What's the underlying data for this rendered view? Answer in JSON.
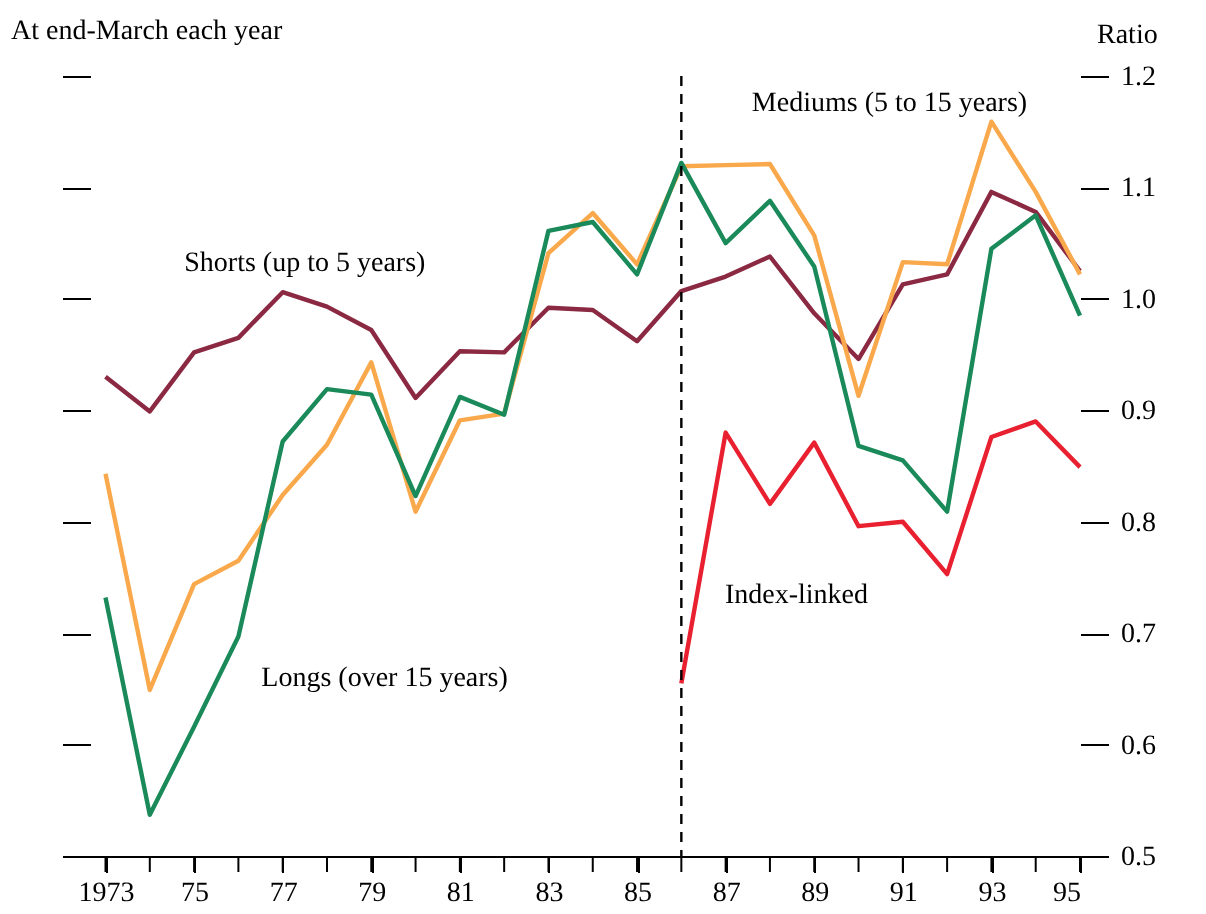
{
  "chart_data": {
    "type": "line",
    "ylabel": "Ratio",
    "annotations": [
      "At end-March each year"
    ],
    "x": [
      1973,
      1974,
      1975,
      1976,
      1977,
      1978,
      1979,
      1980,
      1981,
      1982,
      1983,
      1984,
      1985,
      1986,
      1987,
      1988,
      1989,
      1990,
      1991,
      1992,
      1993,
      1994,
      1995
    ],
    "series": [
      {
        "name": "Shorts (up to 5 years)",
        "color": "#8b2942",
        "values": [
          0.93,
          0.899,
          0.952,
          0.965,
          1.006,
          0.993,
          0.972,
          0.911,
          0.953,
          0.952,
          0.992,
          0.99,
          0.962,
          1.007,
          1.02,
          1.038,
          0.987,
          0.946,
          1.013,
          1.022,
          1.096,
          1.078,
          1.025
        ]
      },
      {
        "name": "Mediums (5 to 15 years)",
        "color": "#f9a94b",
        "values": [
          0.843,
          0.649,
          0.744,
          0.765,
          0.824,
          0.869,
          0.943,
          0.809,
          0.891,
          0.897,
          1.041,
          1.077,
          1.031,
          1.119,
          1.12,
          1.121,
          1.057,
          0.913,
          1.033,
          1.031,
          1.159,
          1.096,
          1.022
        ]
      },
      {
        "name": "Longs (over 15 years)",
        "color": "#1a8a5a",
        "values": [
          0.732,
          0.537,
          0.616,
          0.697,
          0.872,
          0.919,
          0.914,
          0.823,
          0.912,
          0.896,
          1.061,
          1.069,
          1.022,
          1.122,
          1.05,
          1.088,
          1.029,
          0.868,
          0.855,
          0.809,
          1.045,
          1.075,
          0.985
        ]
      },
      {
        "name": "Index-linked",
        "color": "#e8202f",
        "values": [
          null,
          null,
          null,
          null,
          null,
          null,
          null,
          null,
          null,
          null,
          null,
          null,
          null,
          0.655,
          0.88,
          0.816,
          0.871,
          0.796,
          0.8,
          0.753,
          0.876,
          0.89,
          0.849
        ]
      }
    ],
    "xlim": [
      1972.65,
      1995
    ],
    "xticks": [
      1973,
      {
        "value": 1974,
        "label": null
      },
      {
        "value": 1975,
        "label": "75"
      },
      {
        "value": 1976,
        "label": null
      },
      {
        "value": 1977,
        "label": "77"
      },
      {
        "value": 1978,
        "label": null
      },
      {
        "value": 1979,
        "label": "79"
      },
      {
        "value": 1980,
        "label": null
      },
      {
        "value": 1981,
        "label": "81"
      },
      {
        "value": 1982,
        "label": null
      },
      {
        "value": 1983,
        "label": "83"
      },
      {
        "value": 1984,
        "label": null
      },
      {
        "value": 1985,
        "label": "85"
      },
      {
        "value": 1986,
        "label": null
      },
      {
        "value": 1987,
        "label": "87"
      },
      {
        "value": 1988,
        "label": null
      },
      {
        "value": 1989,
        "label": "89"
      },
      {
        "value": 1990,
        "label": null
      },
      {
        "value": 1991,
        "label": "91"
      },
      {
        "value": 1992,
        "label": null
      },
      {
        "value": 1993,
        "label": "93"
      },
      {
        "value": 1994,
        "label": null
      },
      {
        "value": 1995,
        "label": "95"
      }
    ],
    "ylim": [
      0.5,
      1.2
    ],
    "yticks": [
      0.5,
      0.6,
      0.7,
      0.8,
      0.9,
      {
        "value": 1.0,
        "label": "1.0"
      },
      1.1,
      1.2
    ],
    "ref_lines": [
      {
        "axis": "x",
        "value": 1986,
        "label": null,
        "color": "#000000",
        "line_style": "dashed"
      }
    ],
    "grid": false,
    "legend": false,
    "marker": "none",
    "line_style": "solid"
  }
}
